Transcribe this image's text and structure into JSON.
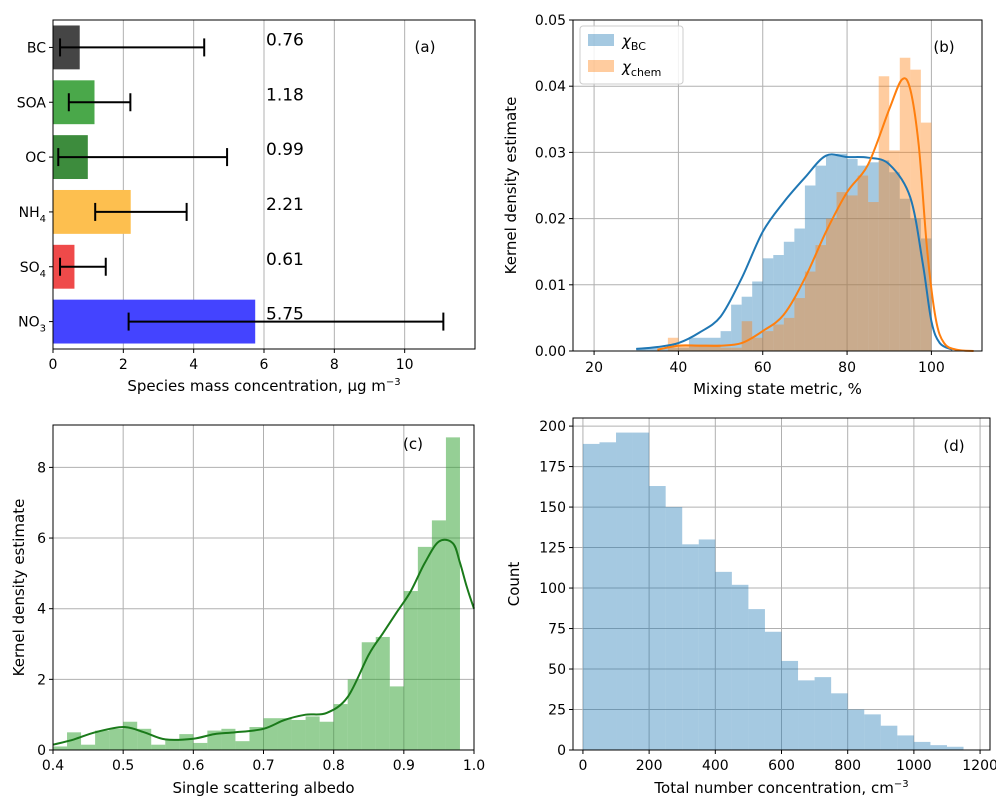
{
  "colors": {
    "grid": "#b0b0b0",
    "axis": "#000000",
    "blue_hist": "#1f77b4",
    "orange_hist": "#ff7f0e",
    "green_hist": "#2ca02c",
    "green_line": "#1a7a1a",
    "count_hist": "#1f77b4"
  },
  "chart_data": [
    {
      "panel": "(a)",
      "type": "bar",
      "orientation": "horizontal",
      "categories": [
        "BC",
        "SOA",
        "OC",
        "NH4",
        "SO4",
        "NO3"
      ],
      "category_subscripts": [
        "",
        "",
        "",
        "4",
        "4",
        "3"
      ],
      "category_bases": [
        "BC",
        "SOA",
        "OC",
        "NH",
        "SO",
        "NO"
      ],
      "values": [
        0.76,
        1.18,
        0.99,
        2.21,
        0.61,
        5.75
      ],
      "value_labels": [
        "0.76",
        "1.18",
        "0.99",
        "2.21",
        "0.61",
        "5.75"
      ],
      "error_low": [
        0.2,
        0.45,
        0.15,
        1.2,
        0.2,
        2.15
      ],
      "error_high": [
        4.3,
        2.2,
        4.95,
        3.8,
        1.5,
        11.1
      ],
      "bar_colors": [
        "#454545",
        "#4aa84a",
        "#3d8c3d",
        "#fdbf4f",
        "#ef4a4a",
        "#4444ff"
      ],
      "xlabel": "Species mass concentration, µg m",
      "xlabel_sup": "−3",
      "xlim": [
        0,
        12
      ],
      "xticks": [
        0,
        2,
        4,
        6,
        8,
        10
      ],
      "grid": true
    },
    {
      "panel": "(b)",
      "type": "histogram",
      "xlabel": "Mixing state metric, %",
      "ylabel": "Kernel density estimate",
      "xlim": [
        15,
        112
      ],
      "ylim": [
        0,
        0.05
      ],
      "xticks": [
        20,
        40,
        60,
        80,
        100
      ],
      "yticks": [
        "0.00",
        "0.01",
        "0.02",
        "0.03",
        "0.04",
        "0.05"
      ],
      "legend_position": "top-left",
      "grid": true,
      "series": [
        {
          "name": "χ",
          "name_sub": "BC",
          "bin_edges": [
            30,
            32.5,
            35,
            37.5,
            40,
            42.5,
            45,
            47.5,
            50,
            52.5,
            55,
            57.5,
            60,
            62.5,
            65,
            67.5,
            70,
            72.5,
            75,
            77.5,
            80,
            82.5,
            85,
            87.5,
            90,
            92.5,
            95,
            97.5,
            100
          ],
          "density": [
            0.0005,
            0.0005,
            0.0005,
            0.0005,
            0.0005,
            0.002,
            0.002,
            0.002,
            0.003,
            0.007,
            0.0082,
            0.0105,
            0.014,
            0.0145,
            0.0165,
            0.0185,
            0.025,
            0.028,
            0.0295,
            0.0298,
            0.029,
            0.028,
            0.0285,
            0.0288,
            0.027,
            0.023,
            0.02,
            0.017
          ],
          "kde_x": [
            30,
            35,
            40,
            45,
            50,
            55,
            60,
            65,
            70,
            75,
            80,
            85,
            90,
            95,
            98,
            100,
            102,
            105
          ],
          "kde_y": [
            0.0003,
            0.0006,
            0.0012,
            0.0028,
            0.0052,
            0.011,
            0.018,
            0.0225,
            0.0262,
            0.0295,
            0.0293,
            0.0292,
            0.0282,
            0.0232,
            0.013,
            0.0045,
            0.0012,
            0.0002
          ]
        },
        {
          "name": "χ",
          "name_sub": "chem",
          "bin_edges": [
            37.5,
            40,
            42.5,
            45,
            47.5,
            50,
            52.5,
            55,
            57.5,
            60,
            62.5,
            65,
            67.5,
            70,
            72.5,
            75,
            77.5,
            80,
            82.5,
            85,
            87.5,
            90,
            92.5,
            95,
            97.5,
            100
          ],
          "density": [
            0.002,
            0.001,
            0.001,
            0.001,
            0.001,
            0.0005,
            0.0005,
            0.0045,
            0.002,
            0.003,
            0.004,
            0.005,
            0.008,
            0.012,
            0.016,
            0.02,
            0.024,
            0.0235,
            0.0265,
            0.0225,
            0.0415,
            0.0303,
            0.0443,
            0.0425,
            0.0345
          ],
          "kde_x": [
            35,
            40,
            45,
            50,
            55,
            60,
            65,
            70,
            75,
            80,
            85,
            90,
            93,
            95,
            97,
            99,
            101,
            103,
            106,
            110
          ],
          "kde_y": [
            0.0002,
            0.0008,
            0.0008,
            0.0008,
            0.0012,
            0.003,
            0.0055,
            0.011,
            0.018,
            0.024,
            0.0282,
            0.0365,
            0.041,
            0.0395,
            0.031,
            0.0152,
            0.005,
            0.0012,
            0.0002,
            0.0
          ]
        }
      ]
    },
    {
      "panel": "(c)",
      "type": "histogram",
      "xlabel": "Single scattering albedo",
      "ylabel": "Kernel density estimate",
      "xlim": [
        0.4,
        1.0
      ],
      "ylim": [
        0,
        9.2
      ],
      "xticks": [
        "0.4",
        "0.5",
        "0.6",
        "0.7",
        "0.8",
        "0.9",
        "1.0"
      ],
      "yticks": [
        0,
        2,
        4,
        6,
        8
      ],
      "grid": true,
      "series": [
        {
          "bin_edges": [
            0.4,
            0.42,
            0.44,
            0.46,
            0.48,
            0.5,
            0.52,
            0.54,
            0.56,
            0.58,
            0.6,
            0.62,
            0.64,
            0.66,
            0.68,
            0.7,
            0.72,
            0.74,
            0.76,
            0.78,
            0.8,
            0.82,
            0.84,
            0.86,
            0.88,
            0.9,
            0.92,
            0.94,
            0.96,
            0.98,
            1.0
          ],
          "density": [
            0.1,
            0.5,
            0.15,
            0.55,
            0.6,
            0.8,
            0.6,
            0.15,
            0.3,
            0.45,
            0.2,
            0.55,
            0.6,
            0.25,
            0.65,
            0.9,
            0.9,
            0.85,
            0.95,
            0.8,
            1.3,
            2.0,
            3.05,
            3.2,
            1.8,
            4.5,
            5.75,
            6.5,
            8.85,
            0.0
          ],
          "kde_x": [
            0.4,
            0.43,
            0.46,
            0.5,
            0.53,
            0.56,
            0.6,
            0.63,
            0.66,
            0.7,
            0.73,
            0.76,
            0.79,
            0.82,
            0.85,
            0.87,
            0.89,
            0.91,
            0.93,
            0.95,
            0.97,
            0.98,
            0.99,
            1.0
          ],
          "kde_y": [
            0.15,
            0.3,
            0.5,
            0.65,
            0.5,
            0.3,
            0.32,
            0.45,
            0.5,
            0.6,
            0.85,
            1.0,
            1.05,
            1.5,
            2.7,
            3.3,
            3.9,
            4.5,
            5.3,
            5.9,
            5.85,
            5.3,
            4.6,
            4.0
          ],
          "kde_color": "#1a7a1a"
        }
      ]
    },
    {
      "panel": "(d)",
      "type": "histogram",
      "xlabel": "Total number concentration, cm",
      "xlabel_sup": "−3",
      "ylabel": "Count",
      "xlim": [
        -30,
        1230
      ],
      "ylim": [
        0,
        205
      ],
      "xticks": [
        0,
        200,
        400,
        600,
        800,
        1000,
        1200
      ],
      "yticks": [
        0,
        25,
        50,
        75,
        100,
        125,
        150,
        175,
        200
      ],
      "grid": true,
      "series": [
        {
          "bin_edges": [
            0,
            50,
            100,
            150,
            200,
            250,
            300,
            350,
            400,
            450,
            500,
            550,
            600,
            650,
            700,
            750,
            800,
            850,
            900,
            950,
            1000,
            1050,
            1100,
            1150
          ],
          "counts": [
            189,
            190,
            196,
            196,
            163,
            150,
            127,
            130,
            110,
            102,
            87,
            73,
            55,
            43,
            45,
            35,
            25,
            22,
            15,
            9,
            5,
            3,
            2
          ]
        }
      ]
    }
  ]
}
